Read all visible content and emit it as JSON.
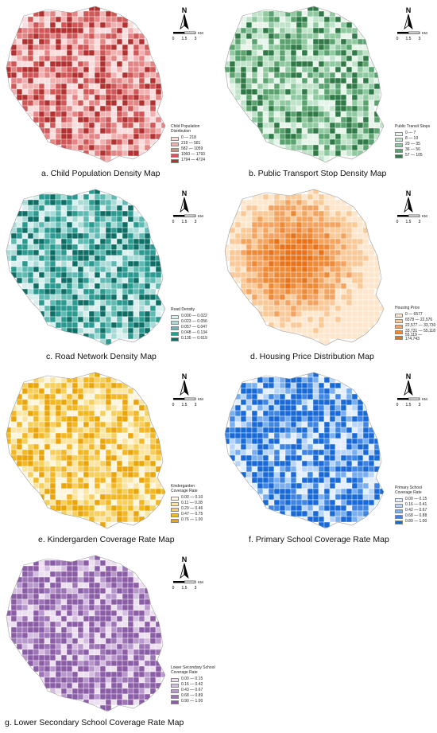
{
  "panels": [
    {
      "id": "a",
      "caption": "a. Child Population Density Map",
      "legend_title": "Child Population Distribution",
      "classes": [
        "0 — 218",
        "219 — 581",
        "582 — 1059",
        "1060 — 1793",
        "1794 — 4724"
      ],
      "colors": [
        "#f9dcdc",
        "#f2b1b1",
        "#e38585",
        "#cf5757",
        "#b23232"
      ],
      "pattern": "mixed"
    },
    {
      "id": "b",
      "caption": "b. Public Transport Stop Density Map",
      "legend_title": "Public Transit Stops",
      "classes": [
        "0 — 7",
        "8 — 19",
        "20 — 35",
        "36 — 56",
        "57 — 105"
      ],
      "colors": [
        "#e6f4ea",
        "#bfe3c9",
        "#8fc99f",
        "#5aa36f",
        "#2f7a46"
      ],
      "pattern": "mixed"
    },
    {
      "id": "c",
      "caption": "c. Road Network Density Map",
      "legend_title": "Road Density",
      "classes": [
        "0.000 — 0.022",
        "0.023 — 0.056",
        "0.057 — 0.047",
        "0.048 — 0.134",
        "0.135 — 0.619"
      ],
      "colors": [
        "#d9efee",
        "#a8dad6",
        "#5fbab3",
        "#2b9a90",
        "#0f6f67"
      ],
      "pattern": "mixed"
    },
    {
      "id": "d",
      "caption": "d. Housing Price Distribution Map",
      "legend_title": "Housing Price",
      "classes": [
        "0 — 6577",
        "6578 — 22,576",
        "22,577 — 33,730",
        "33,731 — 55,118",
        "55,119 — 174,743"
      ],
      "colors": [
        "#fde6cc",
        "#f9c998",
        "#f3a461",
        "#ee8a36",
        "#e8731a"
      ],
      "pattern": "center"
    },
    {
      "id": "e",
      "caption": "e. Kindergarden Coverage Rate Map",
      "legend_title": "Kindergarden Coverage Rate",
      "classes": [
        "0.00 — 0.10",
        "0.11 — 0.28",
        "0.29 — 0.46",
        "0.47 — 0.75",
        "0.76 — 1.00"
      ],
      "colors": [
        "#fdf6dc",
        "#fae5a3",
        "#f6cf5c",
        "#f1b724",
        "#eaa50b"
      ],
      "pattern": "mixed"
    },
    {
      "id": "f",
      "caption": "f. Primary School Coverage Rate Map",
      "legend_title": "Primary School Coverage Rate",
      "classes": [
        "0.00 — 0.15",
        "0.16 — 0.41",
        "0.42 — 0.67",
        "0.68 — 0.88",
        "0.89 — 1.00"
      ],
      "colors": [
        "#e3efff",
        "#b7d5f8",
        "#79aeef",
        "#3f86e3",
        "#1a6ad6"
      ],
      "pattern": "high"
    },
    {
      "id": "g",
      "caption": "g. Lower Secondary School Coverage Rate Map",
      "legend_title": "Lower Secondary School Coverage Rate",
      "classes": [
        "0.00 — 0.15",
        "0.16 — 0.42",
        "0.43 — 0.67",
        "0.68 — 0.89",
        "0.90 — 1.00"
      ],
      "colors": [
        "#ece0f0",
        "#d4bde0",
        "#b897cc",
        "#9d74b6",
        "#8a5da6"
      ],
      "pattern": "high"
    }
  ],
  "north_label": "N",
  "scale": {
    "ticks": [
      "0",
      "1.5",
      "3"
    ],
    "unit": "KM"
  }
}
